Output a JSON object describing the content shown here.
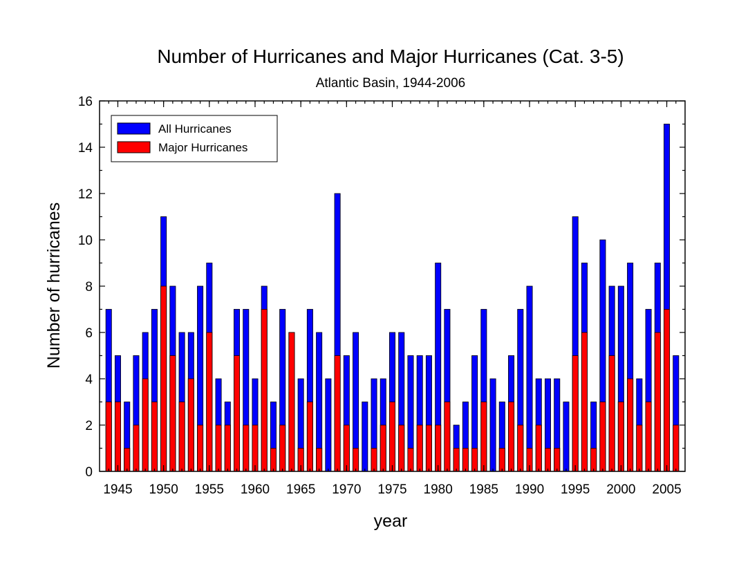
{
  "chart_data": {
    "type": "bar",
    "title": "Number of Hurricanes and Major Hurricanes (Cat. 3-5)",
    "subtitle": "Atlantic Basin, 1944-2006",
    "xlabel": "year",
    "ylabel": "Number of hurricanes",
    "ylim": [
      0,
      16
    ],
    "yticks": [
      0,
      2,
      4,
      6,
      8,
      10,
      12,
      14,
      16
    ],
    "xticks": [
      1945,
      1950,
      1955,
      1960,
      1965,
      1970,
      1975,
      1980,
      1985,
      1990,
      1995,
      2000,
      2005
    ],
    "xlim": [
      1943,
      2007
    ],
    "grid": false,
    "legend_position": "top-left",
    "years": [
      1944,
      1945,
      1946,
      1947,
      1948,
      1949,
      1950,
      1951,
      1952,
      1953,
      1954,
      1955,
      1956,
      1957,
      1958,
      1959,
      1960,
      1961,
      1962,
      1963,
      1964,
      1965,
      1966,
      1967,
      1968,
      1969,
      1970,
      1971,
      1972,
      1973,
      1974,
      1975,
      1976,
      1977,
      1978,
      1979,
      1980,
      1981,
      1982,
      1983,
      1984,
      1985,
      1986,
      1987,
      1988,
      1989,
      1990,
      1991,
      1992,
      1993,
      1994,
      1995,
      1996,
      1997,
      1998,
      1999,
      2000,
      2001,
      2002,
      2003,
      2004,
      2005,
      2006
    ],
    "series": [
      {
        "name": "All Hurricanes",
        "color": "#0000ff",
        "values": [
          7,
          5,
          3,
          5,
          6,
          7,
          11,
          8,
          6,
          6,
          8,
          9,
          4,
          3,
          7,
          7,
          4,
          8,
          3,
          7,
          6,
          4,
          7,
          6,
          4,
          12,
          5,
          6,
          3,
          4,
          4,
          6,
          6,
          5,
          5,
          5,
          9,
          7,
          2,
          3,
          5,
          7,
          4,
          3,
          5,
          7,
          8,
          4,
          4,
          4,
          3,
          11,
          9,
          3,
          10,
          8,
          8,
          9,
          4,
          7,
          9,
          15,
          5
        ]
      },
      {
        "name": "Major Hurricanes",
        "color": "#ff0000",
        "values": [
          3,
          3,
          1,
          2,
          4,
          3,
          8,
          5,
          3,
          4,
          2,
          6,
          2,
          2,
          5,
          2,
          2,
          7,
          1,
          2,
          6,
          1,
          3,
          1,
          0,
          5,
          2,
          1,
          0,
          1,
          2,
          3,
          2,
          1,
          2,
          2,
          2,
          3,
          1,
          1,
          1,
          3,
          0,
          1,
          3,
          2,
          1,
          2,
          1,
          1,
          0,
          5,
          6,
          1,
          3,
          5,
          3,
          4,
          2,
          3,
          6,
          7,
          2
        ]
      }
    ]
  }
}
